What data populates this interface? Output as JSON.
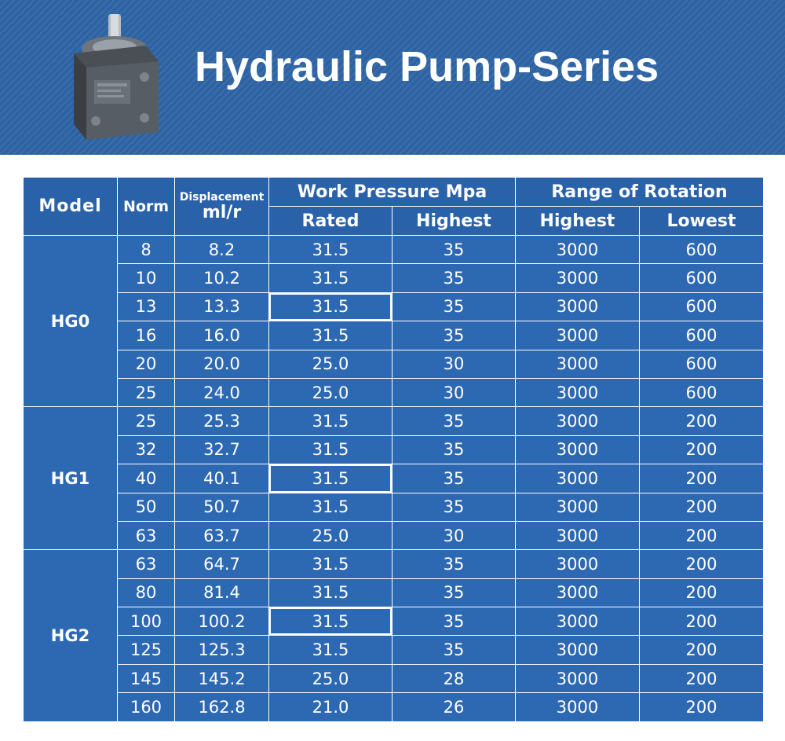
{
  "banner": {
    "title": "Hydraulic Pump-Series"
  },
  "table": {
    "headers": {
      "model": "Model",
      "norm": "Norm",
      "displacement": "Displacement",
      "displacement_unit": "ml/r",
      "work_pressure": "Work Pressure Mpa",
      "rated": "Rated",
      "highest_pressure": "Highest",
      "range_of_rotation": "Range of Rotation",
      "highest_rotation": "Highest",
      "lowest_rotation": "Lowest"
    },
    "groups": [
      {
        "model": "HG0",
        "rows": [
          {
            "norm": "8",
            "displacement": "8.2",
            "rated": "31.5",
            "highest": "35",
            "rot_highest": "3000",
            "rot_lowest": "600"
          },
          {
            "norm": "10",
            "displacement": "10.2",
            "rated": "31.5",
            "highest": "35",
            "rot_highest": "3000",
            "rot_lowest": "600"
          },
          {
            "norm": "13",
            "displacement": "13.3",
            "rated": "31.5",
            "highest": "35",
            "rot_highest": "3000",
            "rot_lowest": "600",
            "highlight": true
          },
          {
            "norm": "16",
            "displacement": "16.0",
            "rated": "31.5",
            "highest": "35",
            "rot_highest": "3000",
            "rot_lowest": "600"
          },
          {
            "norm": "20",
            "displacement": "20.0",
            "rated": "25.0",
            "highest": "30",
            "rot_highest": "3000",
            "rot_lowest": "600"
          },
          {
            "norm": "25",
            "displacement": "24.0",
            "rated": "25.0",
            "highest": "30",
            "rot_highest": "3000",
            "rot_lowest": "600"
          }
        ]
      },
      {
        "model": "HG1",
        "rows": [
          {
            "norm": "25",
            "displacement": "25.3",
            "rated": "31.5",
            "highest": "35",
            "rot_highest": "3000",
            "rot_lowest": "200"
          },
          {
            "norm": "32",
            "displacement": "32.7",
            "rated": "31.5",
            "highest": "35",
            "rot_highest": "3000",
            "rot_lowest": "200"
          },
          {
            "norm": "40",
            "displacement": "40.1",
            "rated": "31.5",
            "highest": "35",
            "rot_highest": "3000",
            "rot_lowest": "200",
            "highlight": true
          },
          {
            "norm": "50",
            "displacement": "50.7",
            "rated": "31.5",
            "highest": "35",
            "rot_highest": "3000",
            "rot_lowest": "200"
          },
          {
            "norm": "63",
            "displacement": "63.7",
            "rated": "25.0",
            "highest": "30",
            "rot_highest": "3000",
            "rot_lowest": "200"
          }
        ]
      },
      {
        "model": "HG2",
        "rows": [
          {
            "norm": "63",
            "displacement": "64.7",
            "rated": "31.5",
            "highest": "35",
            "rot_highest": "3000",
            "rot_lowest": "200"
          },
          {
            "norm": "80",
            "displacement": "81.4",
            "rated": "31.5",
            "highest": "35",
            "rot_highest": "3000",
            "rot_lowest": "200"
          },
          {
            "norm": "100",
            "displacement": "100.2",
            "rated": "31.5",
            "highest": "35",
            "rot_highest": "3000",
            "rot_lowest": "200",
            "highlight": true
          },
          {
            "norm": "125",
            "displacement": "125.3",
            "rated": "31.5",
            "highest": "35",
            "rot_highest": "3000",
            "rot_lowest": "200"
          },
          {
            "norm": "145",
            "displacement": "145.2",
            "rated": "25.0",
            "highest": "28",
            "rot_highest": "3000",
            "rot_lowest": "200"
          },
          {
            "norm": "160",
            "displacement": "162.8",
            "rated": "21.0",
            "highest": "26",
            "rot_highest": "3000",
            "rot_lowest": "200"
          }
        ]
      }
    ]
  }
}
